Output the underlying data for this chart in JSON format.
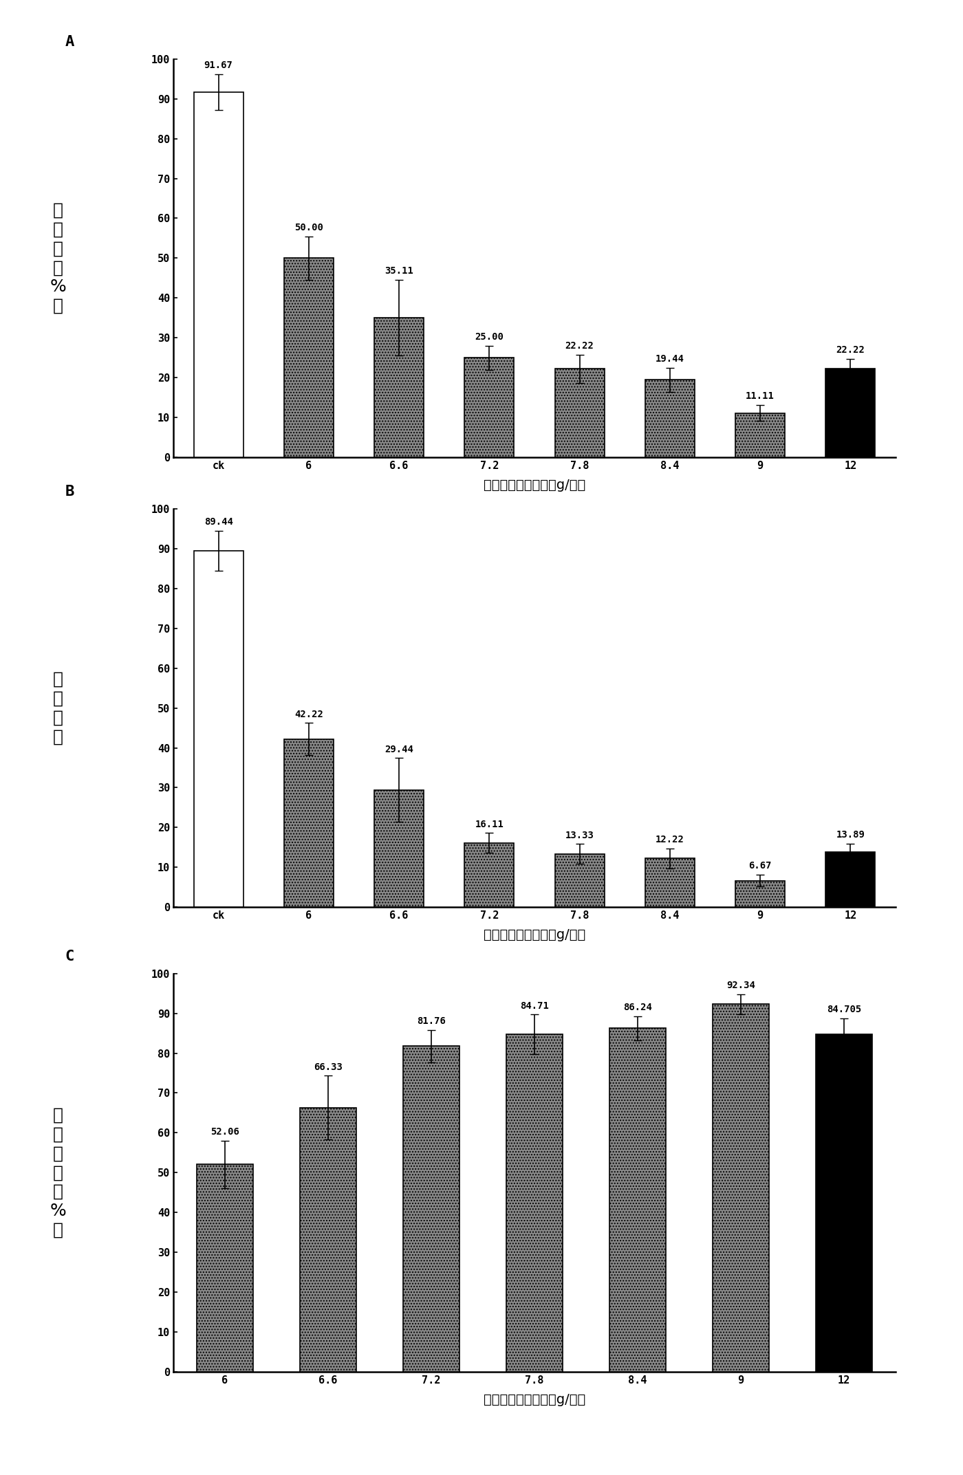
{
  "chart_A": {
    "title": "A",
    "categories": [
      "ck",
      "6",
      "6.6",
      "7.2",
      "7.8",
      "8.4",
      "9",
      "12"
    ],
    "values": [
      91.67,
      50.0,
      35.11,
      25.0,
      22.22,
      19.44,
      11.11,
      22.22
    ],
    "errors": [
      4.5,
      5.5,
      9.5,
      3.0,
      3.5,
      3.0,
      2.0,
      2.5
    ],
    "labels": [
      "91.67",
      "50.00",
      "35.11",
      "25.00",
      "22.22",
      "19.44",
      "11.11",
      "22.22"
    ],
    "ylabel_lines": [
      "发",
      "病",
      "率",
      "（",
      "%",
      "）"
    ],
    "xlabel": "双具酔菌胺施用量（g/亩）",
    "ylim": [
      0,
      100
    ],
    "yticks": [
      0,
      10,
      20,
      30,
      40,
      50,
      60,
      70,
      80,
      90,
      100
    ],
    "bar_colors": [
      "white",
      "#888888",
      "#888888",
      "#888888",
      "#888888",
      "#888888",
      "#888888",
      "black"
    ],
    "hatch_patterns": [
      "",
      "....",
      "....",
      "....",
      "....",
      "....",
      "....",
      ""
    ],
    "edgecolor": "black"
  },
  "chart_B": {
    "title": "B",
    "categories": [
      "ck",
      "6",
      "6.6",
      "7.2",
      "7.8",
      "8.4",
      "9",
      "12"
    ],
    "values": [
      89.44,
      42.22,
      29.44,
      16.11,
      13.33,
      12.22,
      6.67,
      13.89
    ],
    "errors": [
      5.0,
      4.0,
      8.0,
      2.5,
      2.5,
      2.5,
      1.5,
      2.0
    ],
    "labels": [
      "89.44",
      "42.22",
      "29.44",
      "16.11",
      "13.33",
      "12.22",
      "6.67",
      "13.89"
    ],
    "ylabel_lines": [
      "病",
      "情",
      "指",
      "数"
    ],
    "xlabel": "双具酔菌胺施用量（g/亩）",
    "ylim": [
      0,
      100
    ],
    "yticks": [
      0,
      10,
      20,
      30,
      40,
      50,
      60,
      70,
      80,
      90,
      100
    ],
    "bar_colors": [
      "white",
      "#888888",
      "#888888",
      "#888888",
      "#888888",
      "#888888",
      "#888888",
      "black"
    ],
    "hatch_patterns": [
      "",
      "....",
      "....",
      "....",
      "....",
      "....",
      "....",
      ""
    ],
    "edgecolor": "black"
  },
  "chart_C": {
    "title": "C",
    "categories": [
      "6",
      "6.6",
      "7.2",
      "7.8",
      "8.4",
      "9",
      "12"
    ],
    "values": [
      52.06,
      66.33,
      81.76,
      84.71,
      86.24,
      92.34,
      84.705
    ],
    "errors": [
      6.0,
      8.0,
      4.0,
      5.0,
      3.0,
      2.5,
      4.0
    ],
    "labels": [
      "52.06",
      "66.33",
      "81.76",
      "84.71",
      "86.24",
      "92.34",
      "84.705"
    ],
    "ylabel_lines": [
      "防",
      "治",
      "效",
      "果",
      "（",
      "%",
      "）"
    ],
    "xlabel": "双具酔菌胺施用量（g/亩）",
    "ylim": [
      0,
      100
    ],
    "yticks": [
      0,
      10,
      20,
      30,
      40,
      50,
      60,
      70,
      80,
      90,
      100
    ],
    "bar_colors": [
      "#888888",
      "#888888",
      "#888888",
      "#888888",
      "#888888",
      "#888888",
      "black"
    ],
    "hatch_patterns": [
      "....",
      "....",
      "....",
      "....",
      "....",
      "....",
      ""
    ],
    "edgecolor": "black"
  },
  "figure_bg": "white",
  "font_size_value": 10,
  "font_size_tick": 11,
  "font_size_xlabel": 14,
  "font_size_ylabel": 18,
  "font_size_title": 16,
  "bar_width": 0.55
}
